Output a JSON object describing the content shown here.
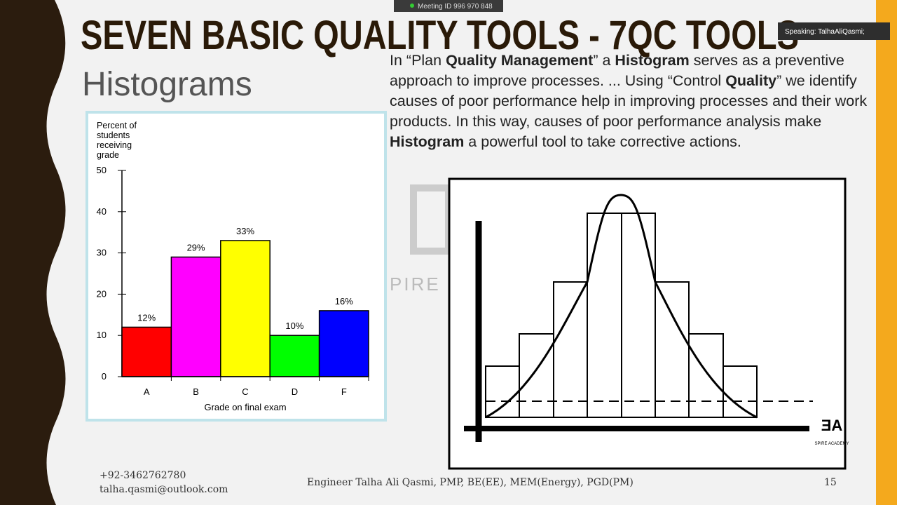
{
  "meeting": {
    "meeting_id": "Meeting ID 996 970 848",
    "speaking": "Speaking: TalhaAliQasmi;"
  },
  "slide": {
    "title": "SEVEN BASIC QUALITY TOOLS - 7QC TOOLS",
    "subtitle": "Histograms",
    "paragraph": [
      {
        "text": "In “Plan ",
        "bold": false
      },
      {
        "text": "Quality Management",
        "bold": true
      },
      {
        "text": "” a ",
        "bold": false
      },
      {
        "text": "Histogram",
        "bold": true
      },
      {
        "text": " serves as a preventive approach to improve processes. ... Using “Control ",
        "bold": false
      },
      {
        "text": "Quality",
        "bold": true
      },
      {
        "text": "” we identify causes of poor performance help in improving processes and their work products. In this way, causes of poor performance analysis make ",
        "bold": false
      },
      {
        "text": "Histogram",
        "bold": true
      },
      {
        "text": " a powerful tool to take corrective actions.",
        "bold": false
      }
    ],
    "watermark": "PIRE",
    "logo_caption": "SPIRE ACADEMY",
    "footer": {
      "phone": "+92-3462762780",
      "email": "talha.qasmi@outlook.com",
      "author": "Engineer Talha Ali Qasmi, PMP, BE(EE), MEM(Energy), PGD(PM)",
      "page": "15"
    }
  },
  "chart_data": {
    "type": "bar",
    "ylabel": [
      "Percent of",
      "students",
      "receiving",
      "grade"
    ],
    "xlabel": "Grade on final exam",
    "categories": [
      "A",
      "B",
      "C",
      "D",
      "F"
    ],
    "values": [
      12,
      29,
      33,
      10,
      16
    ],
    "value_labels": [
      "12%",
      "29%",
      "33%",
      "10%",
      "16%"
    ],
    "colors": [
      "#ff0000",
      "#ff00ff",
      "#ffff00",
      "#00ff00",
      "#0000ff"
    ],
    "ylim": [
      0,
      50
    ],
    "yticks": [
      0,
      10,
      20,
      30,
      40,
      50
    ]
  }
}
